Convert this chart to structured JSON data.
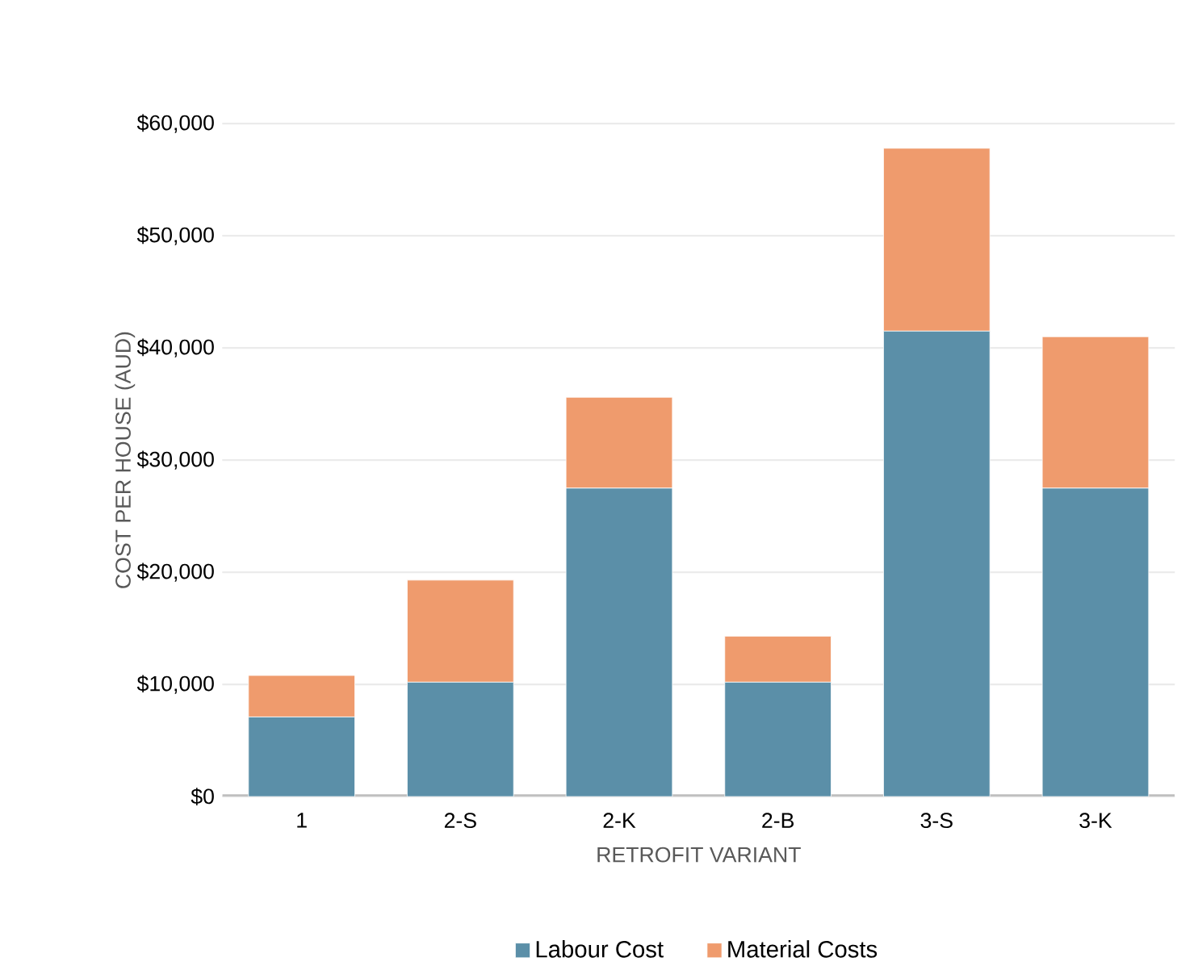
{
  "chart_data": {
    "type": "bar",
    "stacked": true,
    "xlabel": "RETROFIT VARIANT",
    "ylabel": "COST PER HOUSE (AUD)",
    "categories": [
      "1",
      "2-S",
      "2-K",
      "2-B",
      "3-S",
      "3-K"
    ],
    "series": [
      {
        "name": "Labour Cost",
        "color": "#5b8fa8",
        "values": [
          7100,
          10200,
          27500,
          10200,
          41500,
          27500
        ]
      },
      {
        "name": "Material Costs",
        "color": "#ef9b6d",
        "values": [
          3700,
          9100,
          8100,
          4100,
          16300,
          13500
        ]
      }
    ],
    "ylim": [
      0,
      60000
    ],
    "yticks": [
      {
        "value": 0,
        "label": "$0"
      },
      {
        "value": 10000,
        "label": "$10,000"
      },
      {
        "value": 20000,
        "label": "$20,000"
      },
      {
        "value": 30000,
        "label": "$30,000"
      },
      {
        "value": 40000,
        "label": "$40,000"
      },
      {
        "value": 50000,
        "label": "$50,000"
      },
      {
        "value": 60000,
        "label": "$60,000"
      }
    ],
    "grid": "y",
    "legend": "bottom"
  }
}
